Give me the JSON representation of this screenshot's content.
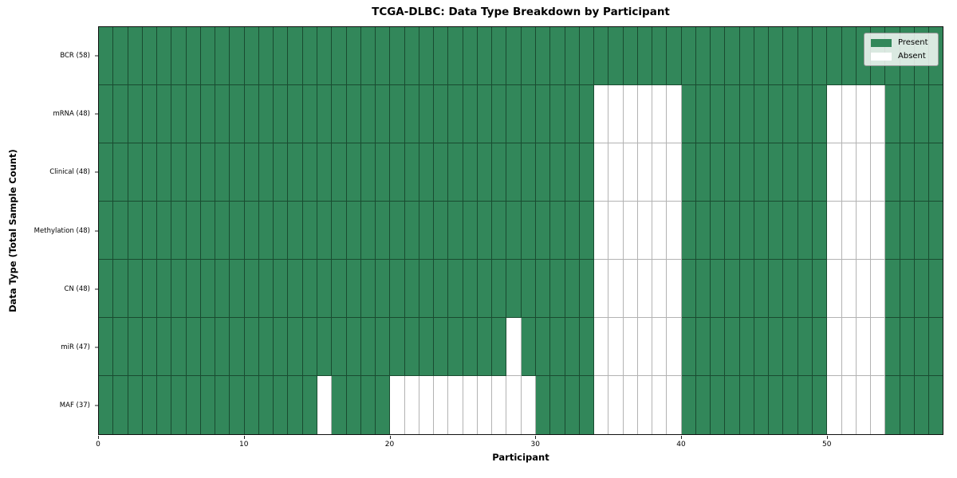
{
  "chart_data": {
    "type": "heatmap",
    "title": "TCGA-DLBC: Data Type Breakdown by Participant",
    "xlabel": "Participant",
    "ylabel": "Data Type (Total Sample Count)",
    "n_participants": 58,
    "x_ticks": [
      0,
      10,
      20,
      30,
      40,
      50
    ],
    "grid": true,
    "legend_position": "upper right",
    "colors": {
      "present": "#32875a",
      "absent": "#ffffff"
    },
    "legend": [
      {
        "label": "Present",
        "color": "#32875a"
      },
      {
        "label": "Absent",
        "color": "#ffffff"
      }
    ],
    "rows": [
      {
        "name": "BCR",
        "label": "BCR (58)",
        "present_count": 58,
        "absent_participants": []
      },
      {
        "name": "mRNA",
        "label": "mRNA (48)",
        "present_count": 48,
        "absent_participants": [
          34,
          35,
          36,
          37,
          38,
          39,
          50,
          51,
          52,
          53
        ]
      },
      {
        "name": "Clinical",
        "label": "Clinical (48)",
        "present_count": 48,
        "absent_participants": [
          34,
          35,
          36,
          37,
          38,
          39,
          50,
          51,
          52,
          53
        ]
      },
      {
        "name": "Methylation",
        "label": "Methylation (48)",
        "present_count": 48,
        "absent_participants": [
          34,
          35,
          36,
          37,
          38,
          39,
          50,
          51,
          52,
          53
        ]
      },
      {
        "name": "CN",
        "label": "CN (48)",
        "present_count": 48,
        "absent_participants": [
          34,
          35,
          36,
          37,
          38,
          39,
          50,
          51,
          52,
          53
        ]
      },
      {
        "name": "miR",
        "label": "miR (47)",
        "present_count": 47,
        "absent_participants": [
          28,
          34,
          35,
          36,
          37,
          38,
          39,
          50,
          51,
          52,
          53
        ]
      },
      {
        "name": "MAF",
        "label": "MAF (37)",
        "present_count": 37,
        "absent_participants": [
          15,
          20,
          21,
          22,
          23,
          24,
          25,
          26,
          27,
          28,
          29,
          34,
          35,
          36,
          37,
          38,
          39,
          50,
          51,
          52,
          53
        ]
      }
    ]
  }
}
